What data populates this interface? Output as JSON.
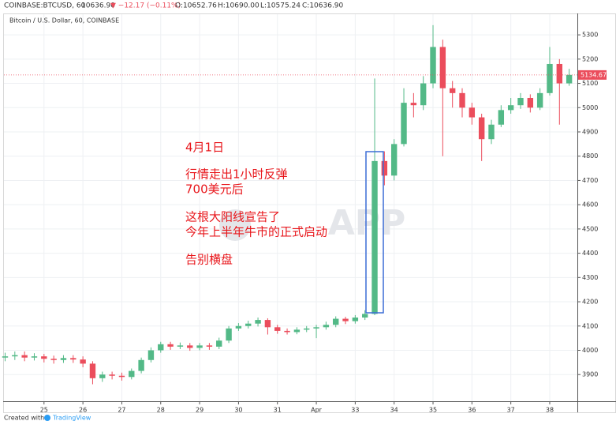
{
  "chart_data": {
    "type": "candlestick",
    "info": {
      "symbol": "COINBASE:BTCUSD, 60",
      "last": "10636.90",
      "change": "▼ −12.17 (−0.11%)",
      "open": "O:10652.76",
      "high": "H:10690.00",
      "low": "L:10575.24",
      "close": "C:10636.90"
    },
    "subtitle": "Bitcoin / U.S. Dollar, 60, COINBASE",
    "annotation": [
      "4月1日",
      "行情走出1小时反弹",
      "700美元后",
      "这根大阳线宣告了",
      "今年上半年牛市的正式启动",
      "告别横盘"
    ],
    "watermark": "APP",
    "footer": {
      "text": "Created with",
      "brand": "TradingView"
    },
    "last_price": 5134.67,
    "up_color": "#53b987",
    "down_color": "#eb4d5c",
    "x": [
      24,
      24.25,
      24.5,
      24.75,
      25,
      25.25,
      25.5,
      25.75,
      26,
      26.25,
      26.5,
      26.75,
      27,
      27.25,
      27.5,
      27.75,
      28,
      28.25,
      28.5,
      28.75,
      29,
      29.25,
      29.5,
      29.75,
      30,
      30.25,
      30.5,
      30.75,
      31,
      31.25,
      31.5,
      31.75,
      32,
      32.25,
      32.5,
      32.75,
      33,
      33.25,
      33.5,
      33.75,
      34,
      34.25,
      34.5,
      34.75,
      35,
      35.25,
      35.5,
      35.75,
      36,
      36.25,
      36.5,
      36.75,
      37,
      37.25,
      37.5,
      37.75,
      38,
      38.25,
      38.5
    ],
    "open": [
      3970,
      3975,
      3980,
      3970,
      3975,
      3965,
      3960,
      3968,
      3962,
      3945,
      3885,
      3900,
      3895,
      3890,
      3915,
      3960,
      4000,
      4025,
      4015,
      4020,
      4010,
      4020,
      4015,
      4040,
      4090,
      4100,
      4110,
      4125,
      4095,
      4080,
      4075,
      4085,
      4090,
      4095,
      4105,
      4130,
      4120,
      4135,
      4150,
      4780,
      4720,
      4850,
      5020,
      5010,
      5100,
      5250,
      5080,
      5060,
      5000,
      4960,
      4870,
      4930,
      4990,
      5010,
      5040,
      5000,
      5060,
      5180,
      5100
    ],
    "high": [
      3990,
      3995,
      3995,
      3988,
      3985,
      3978,
      3980,
      3980,
      3975,
      3955,
      3912,
      3912,
      3908,
      3925,
      3970,
      4012,
      4035,
      4035,
      4032,
      4030,
      4030,
      4030,
      4052,
      4100,
      4112,
      4122,
      4135,
      4132,
      4105,
      4090,
      4095,
      4100,
      4105,
      4118,
      4140,
      4138,
      4145,
      4165,
      5120,
      4820,
      4870,
      5080,
      5060,
      5130,
      5340,
      5280,
      5110,
      5080,
      5020,
      4975,
      4950,
      5010,
      5040,
      5060,
      5055,
      5080,
      5250,
      5200,
      5160
    ],
    "low": [
      3955,
      3960,
      3955,
      3958,
      3950,
      3945,
      3948,
      3948,
      3930,
      3860,
      3870,
      3880,
      3875,
      3880,
      3905,
      3950,
      3990,
      4002,
      4005,
      3998,
      4000,
      4002,
      4005,
      4030,
      4080,
      4090,
      4098,
      4065,
      4068,
      4065,
      4066,
      4075,
      4050,
      4085,
      4095,
      4108,
      4110,
      4125,
      4145,
      4680,
      4700,
      4840,
      4960,
      4990,
      5080,
      4800,
      5000,
      4960,
      4930,
      4780,
      4850,
      4920,
      4975,
      4995,
      4980,
      4990,
      5050,
      4930,
      5090
    ],
    "close": [
      3975,
      3980,
      3970,
      3975,
      3965,
      3960,
      3968,
      3962,
      3945,
      3885,
      3900,
      3895,
      3890,
      3915,
      3960,
      4000,
      4025,
      4015,
      4020,
      4010,
      4020,
      4015,
      4040,
      4090,
      4100,
      4110,
      4125,
      4095,
      4080,
      4075,
      4085,
      4090,
      4095,
      4105,
      4130,
      4120,
      4135,
      4150,
      4780,
      4720,
      4850,
      5020,
      5010,
      5100,
      5250,
      5080,
      5060,
      5000,
      4960,
      4870,
      4930,
      4990,
      5010,
      5040,
      5000,
      5060,
      5180,
      5100,
      5135
    ],
    "xlim": [
      23.97,
      38.71
    ],
    "xticks": [
      25,
      26,
      27,
      28,
      29,
      30,
      31,
      {
        "value": 32,
        "label": "Apr"
      },
      33,
      34,
      35,
      36,
      37,
      38
    ],
    "ylim": [
      3790,
      5385
    ],
    "yticks": [
      3900,
      4000,
      4100,
      4200,
      4300,
      4400,
      4500,
      4600,
      4700,
      4800,
      4900,
      5000,
      5100,
      5200,
      5300
    ],
    "grid": true
  }
}
